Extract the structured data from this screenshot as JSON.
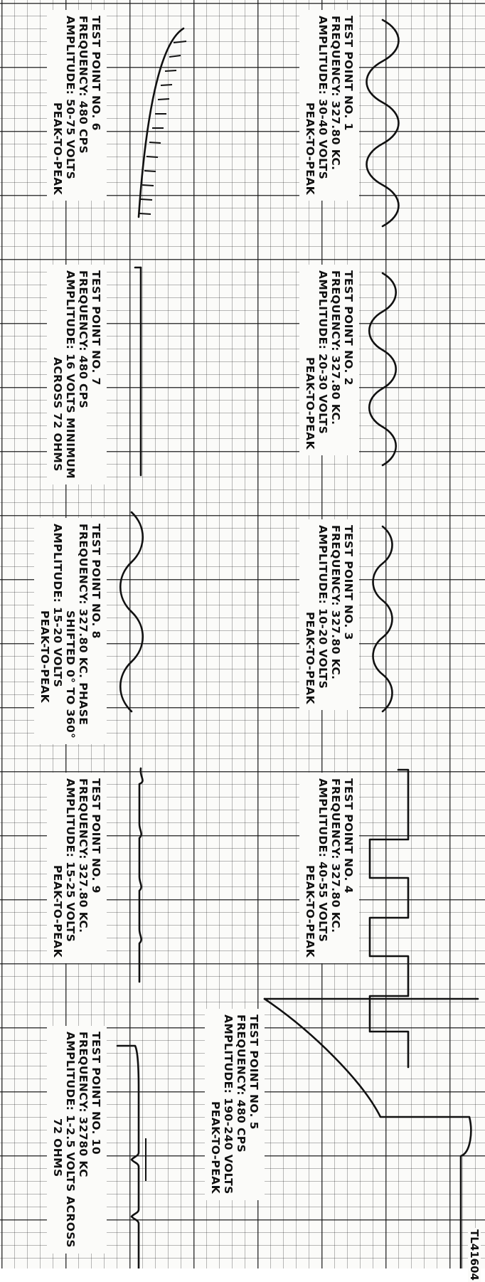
{
  "test_points": [
    {
      "lines": [
        "TEST POINT NO. 1",
        "FREQUENCY: 327.80 KC.",
        "AMPLITUDE: 30-40 VOLTS",
        "PEAK-TO-PEAK"
      ]
    },
    {
      "lines": [
        "TEST POINT NO. 2",
        "FREQUENCY: 327.80 KC.",
        "AMPLITUDE: 20-30 VOLTS",
        "PEAK-TO-PEAK"
      ]
    },
    {
      "lines": [
        "TEST POINT NO. 3",
        "FREQUENCY: 327.80 KC.",
        "AMPLITUDE: 10-20 VOLTS",
        "PEAK-TO-PEAK"
      ]
    },
    {
      "lines": [
        "TEST POINT NO. 4",
        "FREQUENCY: 327.80 KC.",
        "AMPLITUDE: 40-55 VOLTS",
        "PEAK-TO-PEAK"
      ]
    },
    {
      "lines": [
        "TEST POINT NO. 5",
        "FREQUENCY: 480 CPS",
        "AMPLITUDE: 190-240 VOLTS",
        "PEAK-TO-PEAK"
      ]
    },
    {
      "lines": [
        "TEST POINT NO. 6",
        "FREQUENCY: 480 CPS",
        "AMPLITUDE: 50-75 VOLTS",
        "PEAK-TO-PEAK"
      ]
    },
    {
      "lines": [
        "TEST POINT NO. 7",
        "FREQUENCY: 480 CPS",
        "AMPLITUDE: 16 VOLTS MINIMUM",
        "ACROSS 72 OHMS"
      ]
    },
    {
      "lines": [
        "TEST POINT NO. 8",
        "FREQUENCY: 327.80 KC. PHASE",
        "SHIFTED 0° TO 360°",
        "AMPLITUDE: 15-20 VOLTS",
        "PEAK-TO-PEAK"
      ]
    },
    {
      "lines": [
        "TEST POINT NO. 9",
        "FREQUENCY: 327.80 KC.",
        "AMPLITUDE: 15-25 VOLTS",
        "PEAK-TO-PEAK"
      ]
    },
    {
      "lines": [
        "TEST POINT NO. 10",
        "FREQUENCY: 32780 KC",
        "AMPLITUDE: 1-2.5 VOLTS ACROSS",
        "72 OHMS"
      ]
    }
  ],
  "figure_ref": "TL41604"
}
